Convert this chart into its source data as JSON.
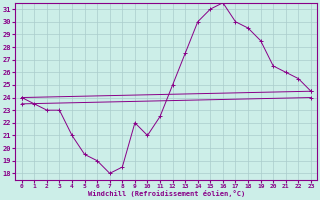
{
  "xlabel": "Windchill (Refroidissement éolien,°C)",
  "background_color": "#cceee8",
  "grid_color": "#aacccc",
  "line_color": "#880088",
  "xlim": [
    -0.5,
    23.5
  ],
  "ylim": [
    17.5,
    31.5
  ],
  "yticks": [
    18,
    19,
    20,
    21,
    22,
    23,
    24,
    25,
    26,
    27,
    28,
    29,
    30,
    31
  ],
  "xticks": [
    0,
    1,
    2,
    3,
    4,
    5,
    6,
    7,
    8,
    9,
    10,
    11,
    12,
    13,
    14,
    15,
    16,
    17,
    18,
    19,
    20,
    21,
    22,
    23
  ],
  "series": [
    {
      "x": [
        0,
        1,
        2,
        3,
        4,
        5,
        6,
        7,
        8,
        9,
        10,
        11,
        12,
        13,
        14,
        15,
        16,
        17,
        18,
        19,
        20,
        21,
        22,
        23
      ],
      "y": [
        24,
        23.5,
        23,
        23,
        21,
        19.5,
        19,
        18,
        18.5,
        22,
        21,
        22.5,
        25,
        27.5,
        30,
        31,
        31.5,
        30,
        29.5,
        28.5,
        26.5,
        26,
        25.5,
        24.5
      ]
    },
    {
      "x": [
        0,
        23
      ],
      "y": [
        24.0,
        24.5
      ]
    },
    {
      "x": [
        0,
        23
      ],
      "y": [
        23.5,
        24.0
      ]
    }
  ],
  "series_with_markers": [
    0
  ],
  "figsize": [
    3.2,
    2.0
  ],
  "dpi": 100
}
